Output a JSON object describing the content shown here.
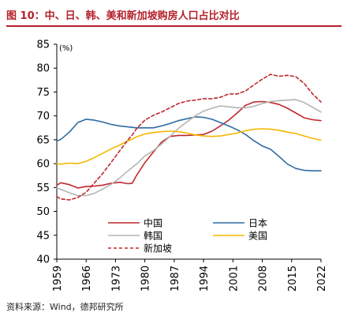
{
  "figure": {
    "title": "图 10：中、日、韩、美和新加坡购房人口占比对比",
    "source": "资料来源：Wind，德邦研究所"
  },
  "chart_data": {
    "type": "line",
    "ylabel": "(%)",
    "xlabel": "",
    "xlim": [
      1959,
      2022
    ],
    "ylim": [
      40,
      85
    ],
    "xticks": [
      "1959",
      "1966",
      "1973",
      "1980",
      "1987",
      "1994",
      "2001",
      "2008",
      "2015",
      "2022"
    ],
    "yticks": [
      "40",
      "45",
      "50",
      "55",
      "60",
      "65",
      "70",
      "75",
      "80",
      "85"
    ],
    "grid": false,
    "legend_position": "lower-center",
    "x": [
      1959,
      1960,
      1962,
      1964,
      1966,
      1968,
      1970,
      1972,
      1974,
      1976,
      1977,
      1978,
      1980,
      1982,
      1984,
      1986,
      1988,
      1990,
      1992,
      1994,
      1996,
      1998,
      2000,
      2002,
      2004,
      2006,
      2008,
      2010,
      2012,
      2014,
      2016,
      2018,
      2020,
      2022
    ],
    "series": [
      {
        "name": "中国",
        "color": "#c0282e",
        "dash": "solid",
        "values": [
          55.5,
          56,
          55.6,
          54.9,
          55.2,
          55.3,
          55.5,
          55.9,
          56.1,
          55.8,
          55.9,
          57.5,
          60.2,
          62.4,
          64.5,
          65.7,
          65.9,
          65.9,
          66.0,
          66.1,
          66.8,
          67.9,
          69.1,
          70.6,
          72.2,
          72.9,
          73.0,
          72.8,
          72.4,
          71.6,
          70.6,
          69.6,
          69.2,
          69.0
        ]
      },
      {
        "name": "日本",
        "color": "#2f6ca3",
        "dash": "solid",
        "values": [
          64.7,
          65.1,
          66.6,
          68.6,
          69.3,
          69.1,
          68.7,
          68.2,
          67.9,
          67.7,
          67.6,
          67.5,
          67.5,
          67.5,
          67.9,
          68.4,
          69.0,
          69.4,
          69.8,
          69.7,
          69.3,
          68.6,
          67.9,
          67.1,
          66.1,
          64.8,
          63.7,
          63.0,
          61.5,
          59.9,
          59.0,
          58.6,
          58.5,
          58.5
        ]
      },
      {
        "name": "韩国",
        "color": "#b4b4b4",
        "dash": "solid",
        "values": [
          54.9,
          54.6,
          53.9,
          53.3,
          53.3,
          53.8,
          54.7,
          55.7,
          57.0,
          58.5,
          59.2,
          59.9,
          61.6,
          62.7,
          64.1,
          65.7,
          67.4,
          68.7,
          70.0,
          71.0,
          71.6,
          72.1,
          71.9,
          71.7,
          71.7,
          72.0,
          72.6,
          73.0,
          73.2,
          73.3,
          73.4,
          72.8,
          71.8,
          70.8
        ]
      },
      {
        "name": "美国",
        "color": "#f5b700",
        "dash": "solid",
        "values": [
          60.0,
          59.9,
          60.1,
          60.0,
          60.5,
          61.3,
          62.2,
          63.1,
          63.9,
          64.8,
          65.1,
          65.6,
          66.2,
          66.5,
          66.7,
          66.8,
          66.7,
          66.4,
          66.0,
          65.8,
          65.7,
          65.8,
          66.1,
          66.4,
          66.9,
          67.2,
          67.3,
          67.2,
          67.0,
          66.6,
          66.3,
          65.8,
          65.3,
          64.9
        ]
      },
      {
        "name": "新加坡",
        "color": "#c0282e",
        "dash": "dashed",
        "values": [
          53.1,
          52.6,
          52.4,
          52.9,
          54.0,
          56.0,
          58.0,
          60.3,
          62.7,
          65.0,
          66.0,
          67.3,
          69.1,
          70.1,
          70.8,
          71.7,
          72.6,
          73.1,
          73.3,
          73.6,
          73.6,
          73.9,
          74.6,
          74.6,
          75.2,
          76.5,
          77.7,
          78.7,
          78.3,
          78.5,
          78.2,
          76.8,
          74.6,
          72.9
        ]
      }
    ]
  }
}
